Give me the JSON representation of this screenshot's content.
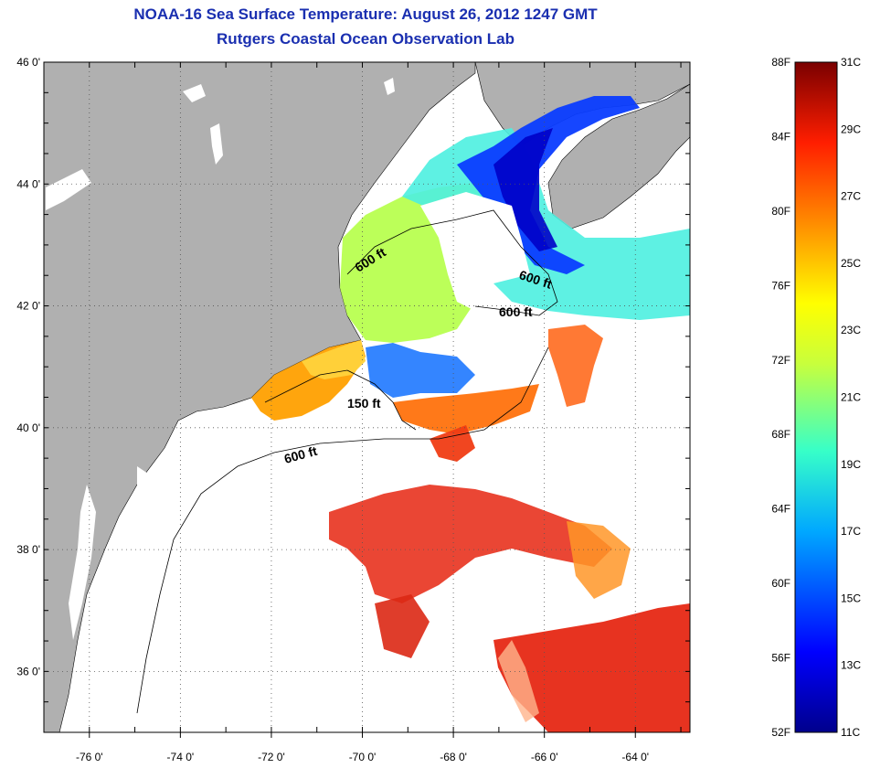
{
  "title_line1": "NOAA-16 Sea Surface Temperature:  August 26, 2012 1247 GMT",
  "title_line2": "Rutgers Coastal Ocean Observation Lab",
  "map": {
    "lon_range": [
      -77,
      -62.8
    ],
    "lat_range": [
      35,
      46
    ],
    "lon_ticks": [
      -76,
      -74,
      -72,
      -70,
      -68,
      -66,
      -64
    ],
    "lon_tick_labels": [
      "-76 0'",
      "-74 0'",
      "-72 0'",
      "-70 0'",
      "-68 0'",
      "-66 0'",
      "-64 0'"
    ],
    "lat_ticks": [
      46,
      44,
      42,
      40,
      38,
      36
    ],
    "lat_tick_labels": [
      "46 0'",
      "44 0'",
      "42 0'",
      "40 0'",
      "38 0'",
      "36 0'"
    ],
    "grid": "dotted",
    "land_color": "#b0b0b0",
    "contour_labels": [
      "600 ft",
      "600 ft",
      "600 ft",
      "150 ft",
      "600 ft"
    ]
  },
  "colorbar": {
    "range_celsius": [
      11,
      31
    ],
    "fahrenheit_labels": [
      "88F",
      "84F",
      "80F",
      "76F",
      "72F",
      "68F",
      "64F",
      "60F",
      "56F",
      "52F"
    ],
    "celsius_labels": [
      "31C",
      "29C",
      "27C",
      "25C",
      "23C",
      "21C",
      "19C",
      "17C",
      "15C",
      "13C",
      "11C"
    ],
    "colors": [
      "#7a0000",
      "#d40000",
      "#ff3a00",
      "#ff8c00",
      "#ffd400",
      "#c8ff3c",
      "#37ffc8",
      "#00a8ff",
      "#0037ff",
      "#00008c"
    ]
  }
}
